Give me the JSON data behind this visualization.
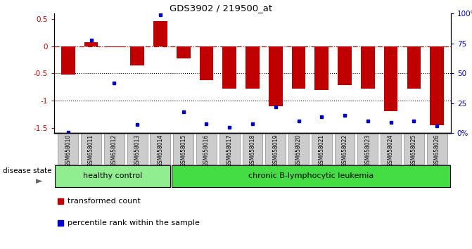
{
  "title": "GDS3902 / 219500_at",
  "samples": [
    "GSM658010",
    "GSM658011",
    "GSM658012",
    "GSM658013",
    "GSM658014",
    "GSM658015",
    "GSM658016",
    "GSM658017",
    "GSM658018",
    "GSM658019",
    "GSM658020",
    "GSM658021",
    "GSM658022",
    "GSM658023",
    "GSM658024",
    "GSM658025",
    "GSM658026"
  ],
  "bar_values": [
    -0.52,
    0.07,
    -0.02,
    -0.35,
    0.47,
    -0.22,
    -0.62,
    -0.78,
    -0.78,
    -1.1,
    -0.78,
    -0.8,
    -0.72,
    -0.78,
    -1.2,
    -0.78,
    -1.45
  ],
  "blue_values_pct": [
    1,
    78,
    42,
    7,
    99,
    18,
    8,
    5,
    8,
    22,
    10,
    14,
    15,
    10,
    9,
    10,
    6
  ],
  "ylim_left": [
    -1.6,
    0.6
  ],
  "ylim_right": [
    0,
    100
  ],
  "bar_color": "#c00000",
  "blue_color": "#0000cc",
  "healthy_count": 5,
  "disease_state_label": "disease state",
  "group1_label": "healthy control",
  "group2_label": "chronic B-lymphocytic leukemia",
  "legend1": "transformed count",
  "legend2": "percentile rank within the sample",
  "group1_color": "#90ee90",
  "group2_color": "#44dd44",
  "xtick_box_color": "#cccccc",
  "left_yticks": [
    -1.5,
    -1.0,
    -0.5,
    0.0,
    0.5
  ],
  "left_yticklabels": [
    "-1.5",
    "-1",
    "-0.5",
    "0",
    "0.5"
  ],
  "right_yticks": [
    0,
    25,
    50,
    75,
    100
  ],
  "right_yticklabels": [
    "0%",
    "25",
    "50",
    "75",
    "100%"
  ],
  "left_tick_color": "#cc0000",
  "right_tick_color": "#0000cc"
}
